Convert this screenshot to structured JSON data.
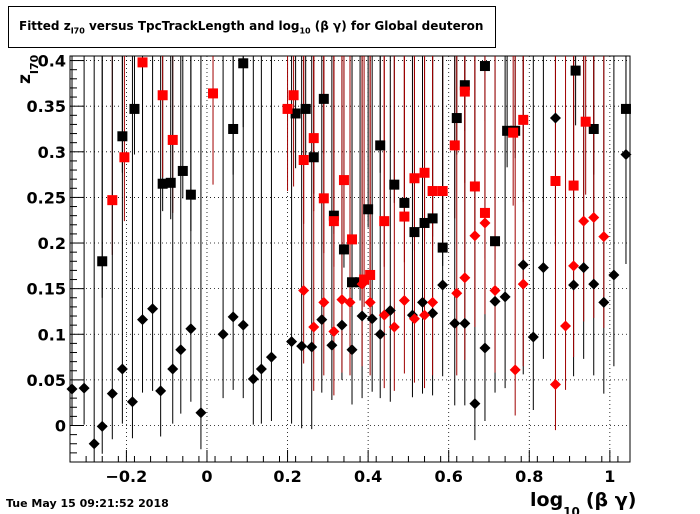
{
  "title": {
    "prefix": "Fitted  z",
    "sub": "I70",
    "middle": "  versus TpcTrackLength and log",
    "sub2": "10",
    "suffix": " (β γ) for Global deuteron"
  },
  "timestamp": "Tue May 15 09:21:52 2018",
  "colors": {
    "black": "#000000",
    "red": "#ff0000",
    "darkred": "#a00000"
  },
  "chart_data": {
    "type": "scatter",
    "xlabel": "log",
    "xlabel_sub": "10",
    "xlabel_suffix": "(β γ)",
    "ylabel": "z",
    "ylabel_sub": "I70",
    "xlim": [
      -0.34,
      1.05
    ],
    "ylim": [
      -0.04,
      0.405
    ],
    "x_ticks": [
      -0.2,
      0,
      0.2,
      0.4,
      0.6,
      0.8,
      1
    ],
    "x_tick_labels": [
      "−0.2",
      "0",
      "0.2",
      "0.4",
      "0.6",
      "0.8",
      "1"
    ],
    "y_ticks": [
      0,
      0.05,
      0.1,
      0.15,
      0.2,
      0.25,
      0.3,
      0.35,
      0.4
    ],
    "y_tick_labels": [
      "0",
      "0.05",
      "0.1",
      "0.15",
      "0.2",
      "0.25",
      "0.3",
      "0.35",
      "0.4"
    ],
    "grid": true,
    "series": [
      {
        "marker": "square",
        "color": "#000000",
        "points": [
          [
            -0.26,
            0.18
          ],
          [
            -0.21,
            0.317
          ],
          [
            -0.18,
            0.347
          ],
          [
            -0.11,
            0.265
          ],
          [
            -0.09,
            0.266
          ],
          [
            -0.06,
            0.279
          ],
          [
            -0.04,
            0.253
          ],
          [
            0.065,
            0.325
          ],
          [
            0.09,
            0.397
          ],
          [
            0.22,
            0.342
          ],
          [
            0.245,
            0.347
          ],
          [
            0.265,
            0.294
          ],
          [
            0.29,
            0.358
          ],
          [
            0.315,
            0.23
          ],
          [
            0.34,
            0.193
          ],
          [
            0.36,
            0.157
          ],
          [
            0.38,
            0.157
          ],
          [
            0.4,
            0.237
          ],
          [
            0.43,
            0.307
          ],
          [
            0.465,
            0.264
          ],
          [
            0.49,
            0.244
          ],
          [
            0.515,
            0.212
          ],
          [
            0.54,
            0.222
          ],
          [
            0.56,
            0.227
          ],
          [
            0.585,
            0.195
          ],
          [
            0.62,
            0.337
          ],
          [
            0.64,
            0.373
          ],
          [
            0.69,
            0.394
          ],
          [
            0.715,
            0.202
          ],
          [
            0.745,
            0.323
          ],
          [
            0.765,
            0.323
          ],
          [
            0.915,
            0.389
          ],
          [
            0.96,
            0.325
          ],
          [
            1.04,
            0.347
          ]
        ],
        "err_low": [
          0.04,
          0.04,
          0.05,
          0.03,
          0.04,
          0.03,
          0.04,
          0.05,
          0.07,
          0.06,
          0.06,
          0.04,
          0.06,
          0.02,
          0.02,
          0.02,
          0.02,
          0.02,
          0.03,
          0.02,
          0.02,
          0.02,
          0.02,
          0.02,
          0.02,
          0.04,
          0.05,
          0.06,
          0.02,
          0.04,
          0.03,
          0.06,
          0.05,
          0.05
        ]
      },
      {
        "marker": "square",
        "color": "#ff0000",
        "points": [
          [
            -0.235,
            0.247
          ],
          [
            -0.205,
            0.294
          ],
          [
            -0.16,
            0.398
          ],
          [
            -0.11,
            0.362
          ],
          [
            -0.085,
            0.313
          ],
          [
            0.015,
            0.364
          ],
          [
            0.2,
            0.347
          ],
          [
            0.215,
            0.362
          ],
          [
            0.24,
            0.291
          ],
          [
            0.265,
            0.315
          ],
          [
            0.29,
            0.249
          ],
          [
            0.315,
            0.224
          ],
          [
            0.34,
            0.269
          ],
          [
            0.36,
            0.204
          ],
          [
            0.39,
            0.16
          ],
          [
            0.405,
            0.165
          ],
          [
            0.44,
            0.224
          ],
          [
            0.49,
            0.229
          ],
          [
            0.515,
            0.271
          ],
          [
            0.54,
            0.277
          ],
          [
            0.56,
            0.257
          ],
          [
            0.585,
            0.257
          ],
          [
            0.615,
            0.307
          ],
          [
            0.64,
            0.366
          ],
          [
            0.665,
            0.262
          ],
          [
            0.69,
            0.233
          ],
          [
            0.76,
            0.321
          ],
          [
            0.785,
            0.335
          ],
          [
            0.865,
            0.268
          ],
          [
            0.91,
            0.263
          ],
          [
            0.94,
            0.333
          ]
        ],
        "err_low": [
          0.06,
          0.07,
          0.1,
          0.09,
          0.08,
          0.1,
          0.09,
          0.1,
          0.07,
          0.08,
          0.06,
          0.05,
          0.07,
          0.04,
          0.03,
          0.03,
          0.05,
          0.05,
          0.06,
          0.07,
          0.06,
          0.06,
          0.08,
          0.1,
          0.06,
          0.05,
          0.08,
          0.09,
          0.06,
          0.06,
          0.08
        ]
      },
      {
        "marker": "diamond",
        "color": "#000000",
        "points": [
          [
            -0.335,
            0.04
          ],
          [
            -0.305,
            0.041
          ],
          [
            -0.28,
            -0.02
          ],
          [
            -0.26,
            -0.001
          ],
          [
            -0.235,
            0.035
          ],
          [
            -0.21,
            0.062
          ],
          [
            -0.185,
            0.026
          ],
          [
            -0.16,
            0.116
          ],
          [
            -0.135,
            0.128
          ],
          [
            -0.115,
            0.038
          ],
          [
            -0.085,
            0.062
          ],
          [
            -0.065,
            0.083
          ],
          [
            -0.04,
            0.106
          ],
          [
            -0.015,
            0.014
          ],
          [
            0.04,
            0.1
          ],
          [
            0.065,
            0.119
          ],
          [
            0.09,
            0.11
          ],
          [
            0.115,
            0.051
          ],
          [
            0.135,
            0.062
          ],
          [
            0.16,
            0.075
          ],
          [
            0.21,
            0.092
          ],
          [
            0.235,
            0.087
          ],
          [
            0.26,
            0.086
          ],
          [
            0.285,
            0.116
          ],
          [
            0.31,
            0.088
          ],
          [
            0.335,
            0.11
          ],
          [
            0.36,
            0.083
          ],
          [
            0.385,
            0.12
          ],
          [
            0.41,
            0.117
          ],
          [
            0.43,
            0.1
          ],
          [
            0.455,
            0.126
          ],
          [
            0.51,
            0.121
          ],
          [
            0.535,
            0.135
          ],
          [
            0.56,
            0.123
          ],
          [
            0.585,
            0.154
          ],
          [
            0.615,
            0.112
          ],
          [
            0.64,
            0.112
          ],
          [
            0.665,
            0.024
          ],
          [
            0.69,
            0.085
          ],
          [
            0.715,
            0.136
          ],
          [
            0.74,
            0.141
          ],
          [
            0.785,
            0.176
          ],
          [
            0.81,
            0.097
          ],
          [
            0.835,
            0.173
          ],
          [
            0.865,
            0.337
          ],
          [
            0.91,
            0.154
          ],
          [
            0.935,
            0.173
          ],
          [
            0.96,
            0.155
          ],
          [
            0.985,
            0.135
          ],
          [
            1.01,
            0.165
          ],
          [
            1.04,
            0.297
          ]
        ],
        "err_low": [
          0.04,
          0.04,
          0.02,
          0.03,
          0.05,
          0.06,
          0.04,
          0.08,
          0.09,
          0.05,
          0.06,
          0.07,
          0.08,
          0.04,
          0.07,
          0.08,
          0.08,
          0.05,
          0.06,
          0.07,
          0.09,
          0.09,
          0.09,
          0.08,
          0.06,
          0.06,
          0.06,
          0.09,
          0.08,
          0.07,
          0.1,
          0.09,
          0.1,
          0.09,
          0.1,
          0.09,
          0.09,
          0.04,
          0.08,
          0.1,
          0.1,
          0.12,
          0.08,
          0.1,
          0.14,
          0.1,
          0.1,
          0.1,
          0.1,
          0.1,
          0.12
        ]
      },
      {
        "marker": "diamond",
        "color": "#ff0000",
        "points": [
          [
            0.24,
            0.148
          ],
          [
            0.265,
            0.108
          ],
          [
            0.29,
            0.135
          ],
          [
            0.315,
            0.103
          ],
          [
            0.335,
            0.138
          ],
          [
            0.355,
            0.135
          ],
          [
            0.385,
            0.155
          ],
          [
            0.405,
            0.135
          ],
          [
            0.44,
            0.121
          ],
          [
            0.465,
            0.108
          ],
          [
            0.49,
            0.137
          ],
          [
            0.515,
            0.117
          ],
          [
            0.54,
            0.121
          ],
          [
            0.56,
            0.135
          ],
          [
            0.62,
            0.145
          ],
          [
            0.64,
            0.162
          ],
          [
            0.665,
            0.208
          ],
          [
            0.69,
            0.222
          ],
          [
            0.715,
            0.148
          ],
          [
            0.765,
            0.061
          ],
          [
            0.785,
            0.155
          ],
          [
            0.865,
            0.045
          ],
          [
            0.89,
            0.109
          ],
          [
            0.91,
            0.175
          ],
          [
            0.935,
            0.224
          ],
          [
            0.96,
            0.228
          ],
          [
            0.985,
            0.207
          ]
        ],
        "err_low": [
          0.08,
          0.07,
          0.08,
          0.07,
          0.08,
          0.08,
          0.09,
          0.08,
          0.08,
          0.07,
          0.08,
          0.07,
          0.08,
          0.08,
          0.09,
          0.09,
          0.1,
          0.1,
          0.09,
          0.05,
          0.09,
          0.05,
          0.07,
          0.1,
          0.11,
          0.11,
          0.1
        ]
      }
    ]
  }
}
